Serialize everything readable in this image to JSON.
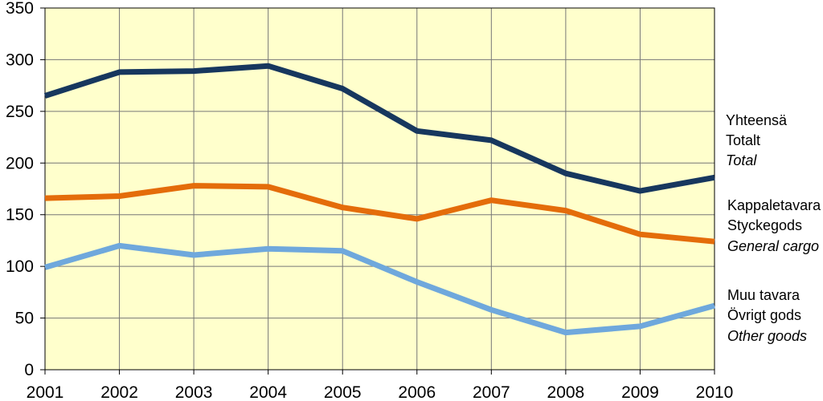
{
  "chart_data": {
    "type": "line",
    "x": [
      2001,
      2002,
      2003,
      2004,
      2005,
      2006,
      2007,
      2008,
      2009,
      2010
    ],
    "ylim": [
      0,
      350
    ],
    "yticks": [
      0,
      50,
      100,
      150,
      200,
      250,
      300,
      350
    ],
    "grid": true,
    "plot_background": "#FFFFCC",
    "legend_placement": "right, next to line ends",
    "series": [
      {
        "key": "total",
        "labels": [
          "Yhteensä",
          "Totalt",
          "Total"
        ],
        "color": "#17375E",
        "values": [
          265,
          288,
          289,
          294,
          272,
          231,
          222,
          190,
          173,
          186
        ]
      },
      {
        "key": "general",
        "labels": [
          "Kappaletavara",
          "Styckegods",
          "General cargo"
        ],
        "color": "#E46C0A",
        "values": [
          166,
          168,
          178,
          177,
          157,
          146,
          164,
          154,
          131,
          124
        ]
      },
      {
        "key": "other",
        "labels": [
          "Muu tavara",
          "Övrigt gods",
          "Other goods"
        ],
        "color": "#6FA8DC",
        "values": [
          99,
          120,
          111,
          117,
          115,
          85,
          58,
          36,
          42,
          62
        ]
      }
    ]
  }
}
